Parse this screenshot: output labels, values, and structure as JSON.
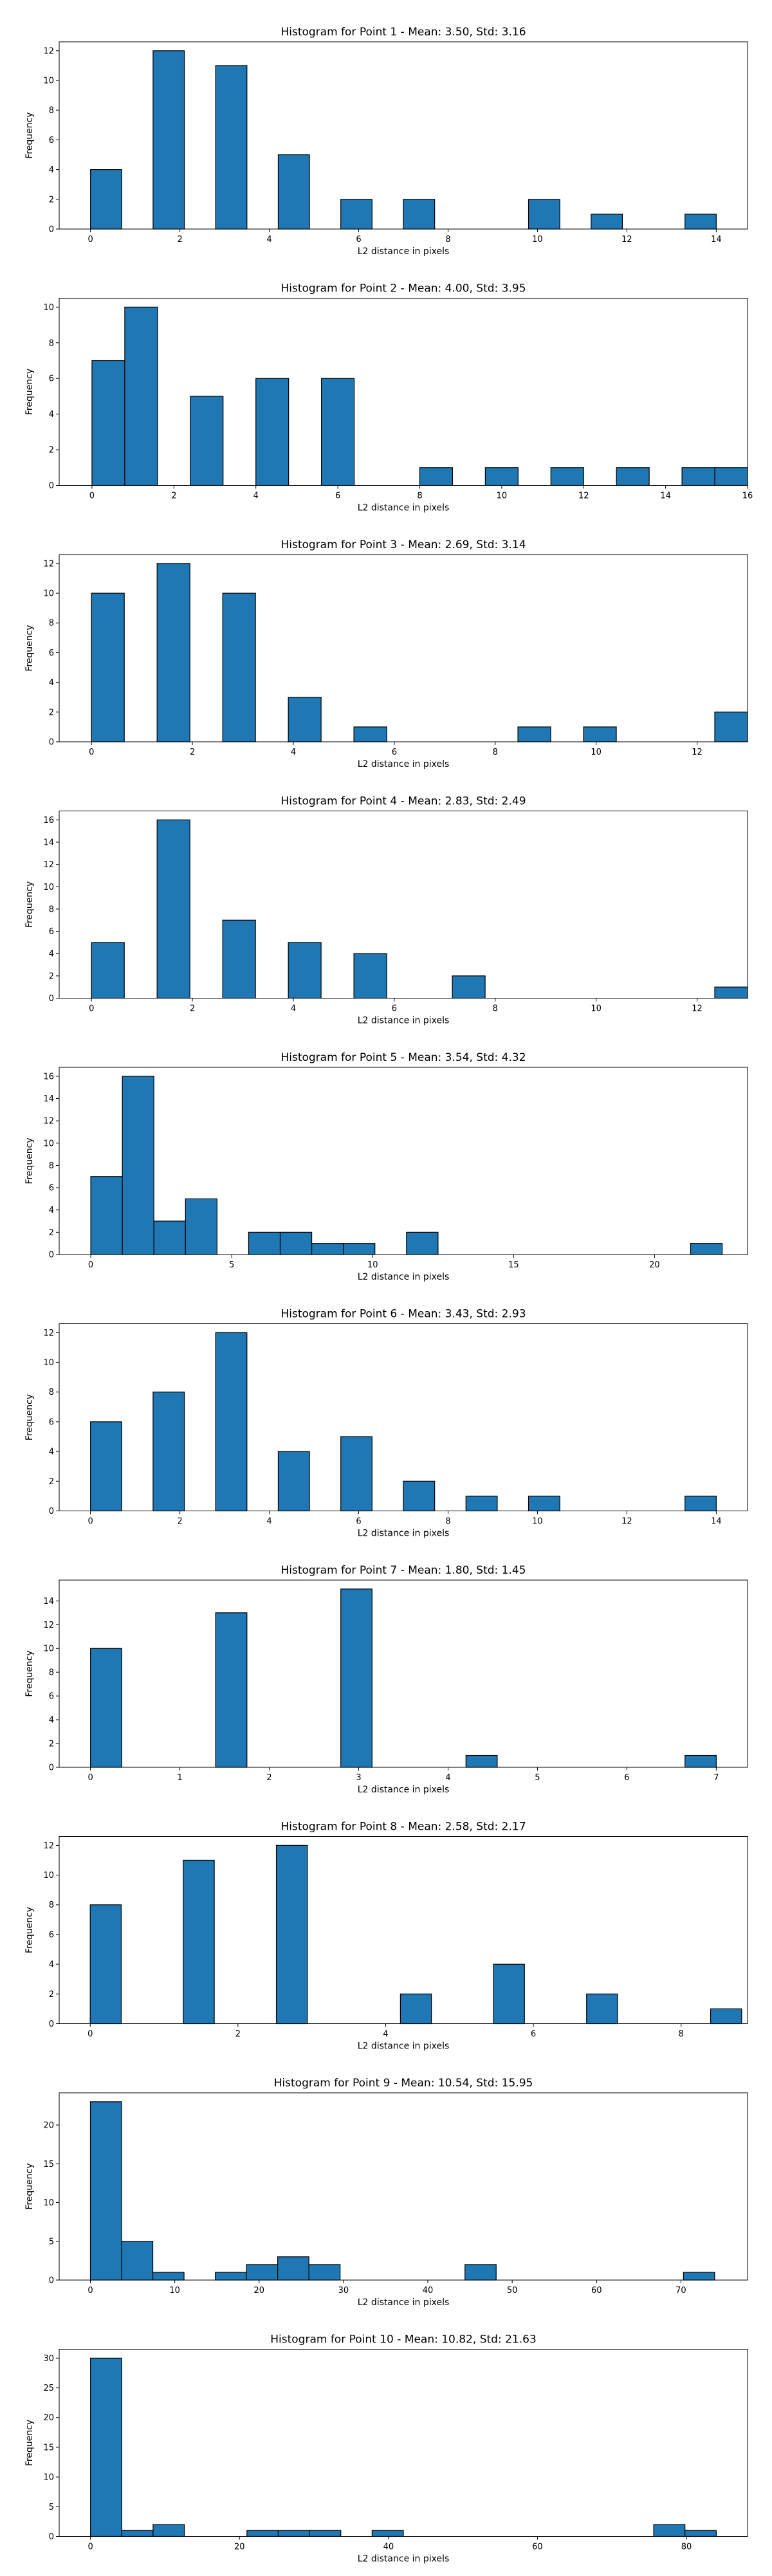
{
  "chart_data": [
    {
      "type": "bar",
      "title": "Histogram for Point 1 - Mean: 3.50, Std: 3.16",
      "xlabel": "L2 distance in pixels",
      "ylabel": "Frequency",
      "xlim": [
        -0.7,
        14.7
      ],
      "ylim": [
        0,
        12.6
      ],
      "xticks": [
        0,
        2,
        4,
        6,
        8,
        10,
        12,
        14
      ],
      "yticks": [
        0,
        2,
        4,
        6,
        8,
        10,
        12
      ],
      "bins": [
        [
          0,
          0.7,
          4
        ],
        [
          1.4,
          2.1,
          12
        ],
        [
          2.8,
          3.5,
          11
        ],
        [
          4.2,
          4.9,
          5
        ],
        [
          5.6,
          6.3,
          2
        ],
        [
          7.0,
          7.7,
          2
        ],
        [
          9.8,
          10.5,
          2
        ],
        [
          11.2,
          11.9,
          1
        ],
        [
          13.3,
          14.0,
          1
        ]
      ],
      "bar_color": "#1f77b4"
    },
    {
      "type": "bar",
      "title": "Histogram for Point 2 - Mean: 4.00, Std: 3.95",
      "xlabel": "L2 distance in pixels",
      "ylabel": "Frequency",
      "xlim": [
        -0.8,
        16.0
      ],
      "ylim": [
        0,
        10.5
      ],
      "xticks": [
        0,
        2,
        4,
        6,
        8,
        10,
        12,
        14,
        16
      ],
      "yticks": [
        0,
        2,
        4,
        6,
        8,
        10
      ],
      "bins": [
        [
          0,
          0.8,
          7
        ],
        [
          0.8,
          1.6,
          10
        ],
        [
          2.4,
          3.2,
          5
        ],
        [
          4.0,
          4.8,
          6
        ],
        [
          5.6,
          6.4,
          6
        ],
        [
          8.0,
          8.8,
          1
        ],
        [
          9.6,
          10.4,
          1
        ],
        [
          11.2,
          12.0,
          1
        ],
        [
          12.8,
          13.6,
          1
        ],
        [
          14.4,
          15.2,
          1
        ],
        [
          15.2,
          16.0,
          1
        ]
      ],
      "bar_color": "#1f77b4"
    },
    {
      "type": "bar",
      "title": "Histogram for Point 3 - Mean: 2.69, Std: 3.14",
      "xlabel": "L2 distance in pixels",
      "ylabel": "Frequency",
      "xlim": [
        -0.64,
        13.0
      ],
      "ylim": [
        0,
        12.6
      ],
      "xticks": [
        0,
        2,
        4,
        6,
        8,
        10,
        12
      ],
      "yticks": [
        0,
        2,
        4,
        6,
        8,
        10,
        12
      ],
      "bins": [
        [
          0,
          0.65,
          10
        ],
        [
          1.3,
          1.95,
          12
        ],
        [
          2.6,
          3.25,
          10
        ],
        [
          3.9,
          4.55,
          3
        ],
        [
          5.2,
          5.85,
          1
        ],
        [
          8.45,
          9.1,
          1
        ],
        [
          9.75,
          10.4,
          1
        ],
        [
          12.35,
          13.0,
          2
        ]
      ],
      "bar_color": "#1f77b4"
    },
    {
      "type": "bar",
      "title": "Histogram for Point 4 - Mean: 2.83, Std: 2.49",
      "xlabel": "L2 distance in pixels",
      "ylabel": "Frequency",
      "xlim": [
        -0.64,
        13.0
      ],
      "ylim": [
        0,
        16.8
      ],
      "xticks": [
        0,
        2,
        4,
        6,
        8,
        10,
        12
      ],
      "yticks": [
        0,
        2,
        4,
        6,
        8,
        10,
        12,
        14,
        16
      ],
      "bins": [
        [
          0,
          0.65,
          5
        ],
        [
          1.3,
          1.95,
          16
        ],
        [
          2.6,
          3.25,
          7
        ],
        [
          3.9,
          4.55,
          5
        ],
        [
          5.2,
          5.85,
          4
        ],
        [
          7.15,
          7.8,
          2
        ],
        [
          12.35,
          13.0,
          1
        ]
      ],
      "bar_color": "#1f77b4"
    },
    {
      "type": "bar",
      "title": "Histogram for Point 5 - Mean: 3.54, Std: 4.32",
      "xlabel": "L2 distance in pixels",
      "ylabel": "Frequency",
      "xlim": [
        -1.12,
        23.3
      ],
      "ylim": [
        0,
        16.8
      ],
      "xticks": [
        0,
        5,
        10,
        15,
        20
      ],
      "yticks": [
        0,
        2,
        4,
        6,
        8,
        10,
        12,
        14,
        16
      ],
      "bins": [
        [
          0,
          1.12,
          7
        ],
        [
          1.12,
          2.24,
          16
        ],
        [
          2.24,
          3.36,
          3
        ],
        [
          3.36,
          4.48,
          5
        ],
        [
          5.6,
          6.72,
          2
        ],
        [
          6.72,
          7.84,
          2
        ],
        [
          7.84,
          8.96,
          1
        ],
        [
          8.96,
          10.08,
          1
        ],
        [
          11.2,
          12.32,
          2
        ],
        [
          21.28,
          22.4,
          1
        ]
      ],
      "bar_color": "#1f77b4"
    },
    {
      "type": "bar",
      "title": "Histogram for Point 6 - Mean: 3.43, Std: 2.93",
      "xlabel": "L2 distance in pixels",
      "ylabel": "Frequency",
      "xlim": [
        -0.7,
        14.7
      ],
      "ylim": [
        0,
        12.6
      ],
      "xticks": [
        0,
        2,
        4,
        6,
        8,
        10,
        12,
        14
      ],
      "yticks": [
        0,
        2,
        4,
        6,
        8,
        10,
        12
      ],
      "bins": [
        [
          0,
          0.7,
          6
        ],
        [
          1.4,
          2.1,
          8
        ],
        [
          2.8,
          3.5,
          12
        ],
        [
          4.2,
          4.9,
          4
        ],
        [
          5.6,
          6.3,
          5
        ],
        [
          7.0,
          7.7,
          2
        ],
        [
          8.4,
          9.1,
          1
        ],
        [
          9.8,
          10.5,
          1
        ],
        [
          13.3,
          14.0,
          1
        ]
      ],
      "bar_color": "#1f77b4"
    },
    {
      "type": "bar",
      "title": "Histogram for Point 7 - Mean: 1.80, Std: 1.45",
      "xlabel": "L2 distance in pixels",
      "ylabel": "Frequency",
      "xlim": [
        -0.35,
        7.35
      ],
      "ylim": [
        0,
        15.75
      ],
      "xticks": [
        0,
        1,
        2,
        3,
        4,
        5,
        6,
        7
      ],
      "yticks": [
        0,
        2,
        4,
        6,
        8,
        10,
        12,
        14
      ],
      "bins": [
        [
          0,
          0.35,
          10
        ],
        [
          1.4,
          1.75,
          13
        ],
        [
          2.8,
          3.15,
          15
        ],
        [
          4.2,
          4.55,
          1
        ],
        [
          6.65,
          7.0,
          1
        ]
      ],
      "bar_color": "#1f77b4"
    },
    {
      "type": "bar",
      "title": "Histogram for Point 8 - Mean: 2.58, Std: 2.17",
      "xlabel": "L2 distance in pixels",
      "ylabel": "Frequency",
      "xlim": [
        -0.42,
        8.9
      ],
      "ylim": [
        0,
        12.6
      ],
      "xticks": [
        0,
        2,
        4,
        6,
        8
      ],
      "yticks": [
        0,
        2,
        4,
        6,
        8,
        10,
        12
      ],
      "bins": [
        [
          0,
          0.42,
          8
        ],
        [
          1.26,
          1.68,
          11
        ],
        [
          2.52,
          2.94,
          12
        ],
        [
          4.2,
          4.62,
          2
        ],
        [
          5.46,
          5.88,
          4
        ],
        [
          6.72,
          7.14,
          2
        ],
        [
          8.4,
          8.82,
          1
        ]
      ],
      "bar_color": "#1f77b4"
    },
    {
      "type": "bar",
      "title": "Histogram for Point 9 - Mean: 10.54, Std: 15.95",
      "xlabel": "L2 distance in pixels",
      "ylabel": "Frequency",
      "xlim": [
        -3.7,
        77.9
      ],
      "ylim": [
        0,
        24.15
      ],
      "xticks": [
        0,
        10,
        20,
        30,
        40,
        50,
        60,
        70
      ],
      "yticks": [
        0,
        5,
        10,
        15,
        20
      ],
      "bins": [
        [
          0,
          3.7,
          23
        ],
        [
          3.7,
          7.4,
          5
        ],
        [
          7.4,
          11.1,
          1
        ],
        [
          14.8,
          18.5,
          1
        ],
        [
          18.5,
          22.2,
          2
        ],
        [
          22.2,
          25.9,
          3
        ],
        [
          25.9,
          29.6,
          2
        ],
        [
          44.4,
          48.1,
          2
        ],
        [
          70.3,
          74.0,
          1
        ]
      ],
      "bar_color": "#1f77b4"
    },
    {
      "type": "bar",
      "title": "Histogram for Point 10 - Mean: 10.82, Std: 21.63",
      "xlabel": "L2 distance in pixels",
      "ylabel": "Frequency",
      "xlim": [
        -4.2,
        88.2
      ],
      "ylim": [
        0,
        31.5
      ],
      "xticks": [
        0,
        20,
        40,
        60,
        80
      ],
      "yticks": [
        0,
        5,
        10,
        15,
        20,
        25,
        30
      ],
      "bins": [
        [
          0,
          4.2,
          30
        ],
        [
          4.2,
          8.4,
          1
        ],
        [
          8.4,
          12.6,
          2
        ],
        [
          21.0,
          25.2,
          1
        ],
        [
          25.2,
          29.4,
          1
        ],
        [
          29.4,
          33.6,
          1
        ],
        [
          37.8,
          42.0,
          1
        ],
        [
          75.6,
          79.8,
          2
        ],
        [
          79.8,
          84.0,
          1
        ]
      ],
      "bar_color": "#1f77b4"
    }
  ]
}
